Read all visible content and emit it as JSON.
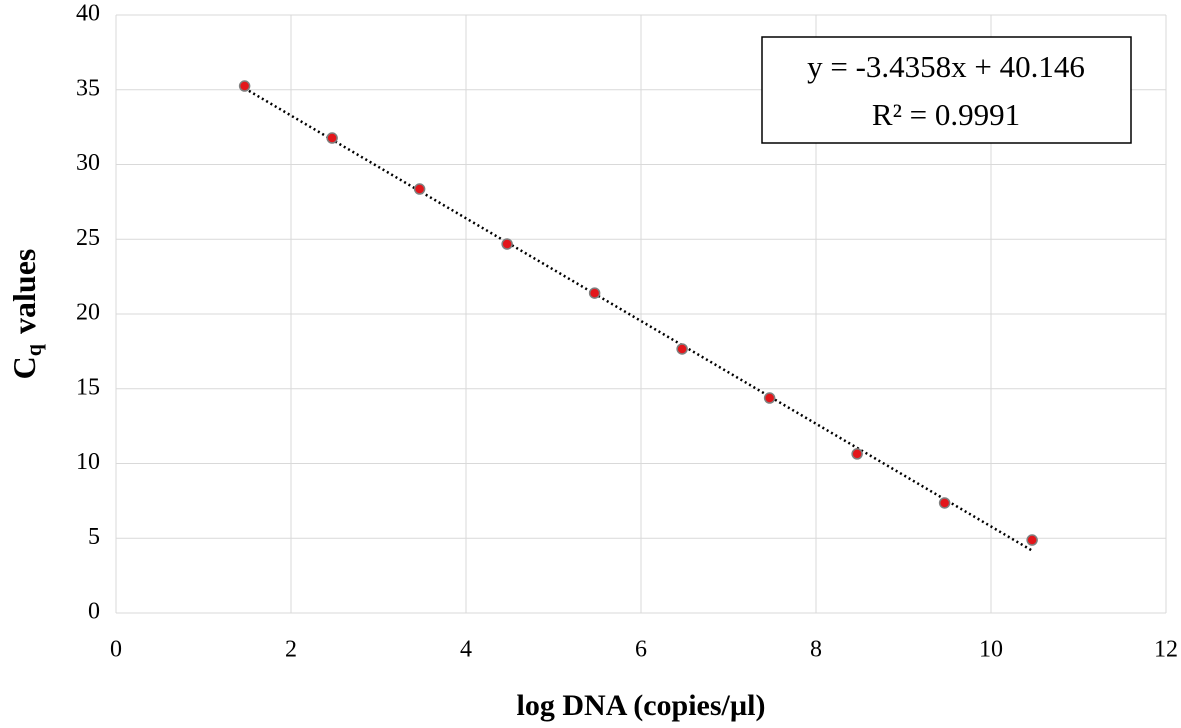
{
  "chart_data": {
    "type": "scatter",
    "x_label": "log DNA (copies/µl)",
    "y_label": {
      "symbol": "C",
      "subscript": "q",
      "text": "values"
    },
    "series": [
      {
        "color": "#e3161b",
        "x": [
          1.47,
          2.47,
          3.47,
          4.47,
          5.47,
          6.47,
          7.47,
          8.47,
          9.47,
          10.47
        ],
        "values": [
          35.25,
          31.77,
          28.36,
          24.68,
          21.4,
          17.66,
          14.38,
          10.64,
          7.36,
          4.88
        ]
      }
    ],
    "trendline": {
      "slope": -3.4358,
      "intercept": 40.146,
      "equation": "y = -3.4358x + 40.146",
      "r2": "R² = 0.9991"
    },
    "xlim": [
      0,
      12
    ],
    "xticks": [
      0,
      2,
      4,
      6,
      8,
      10,
      12
    ],
    "ylim": [
      0,
      40
    ],
    "yticks": [
      0,
      5,
      10,
      15,
      20,
      25,
      30,
      35,
      40
    ],
    "grid": true
  }
}
